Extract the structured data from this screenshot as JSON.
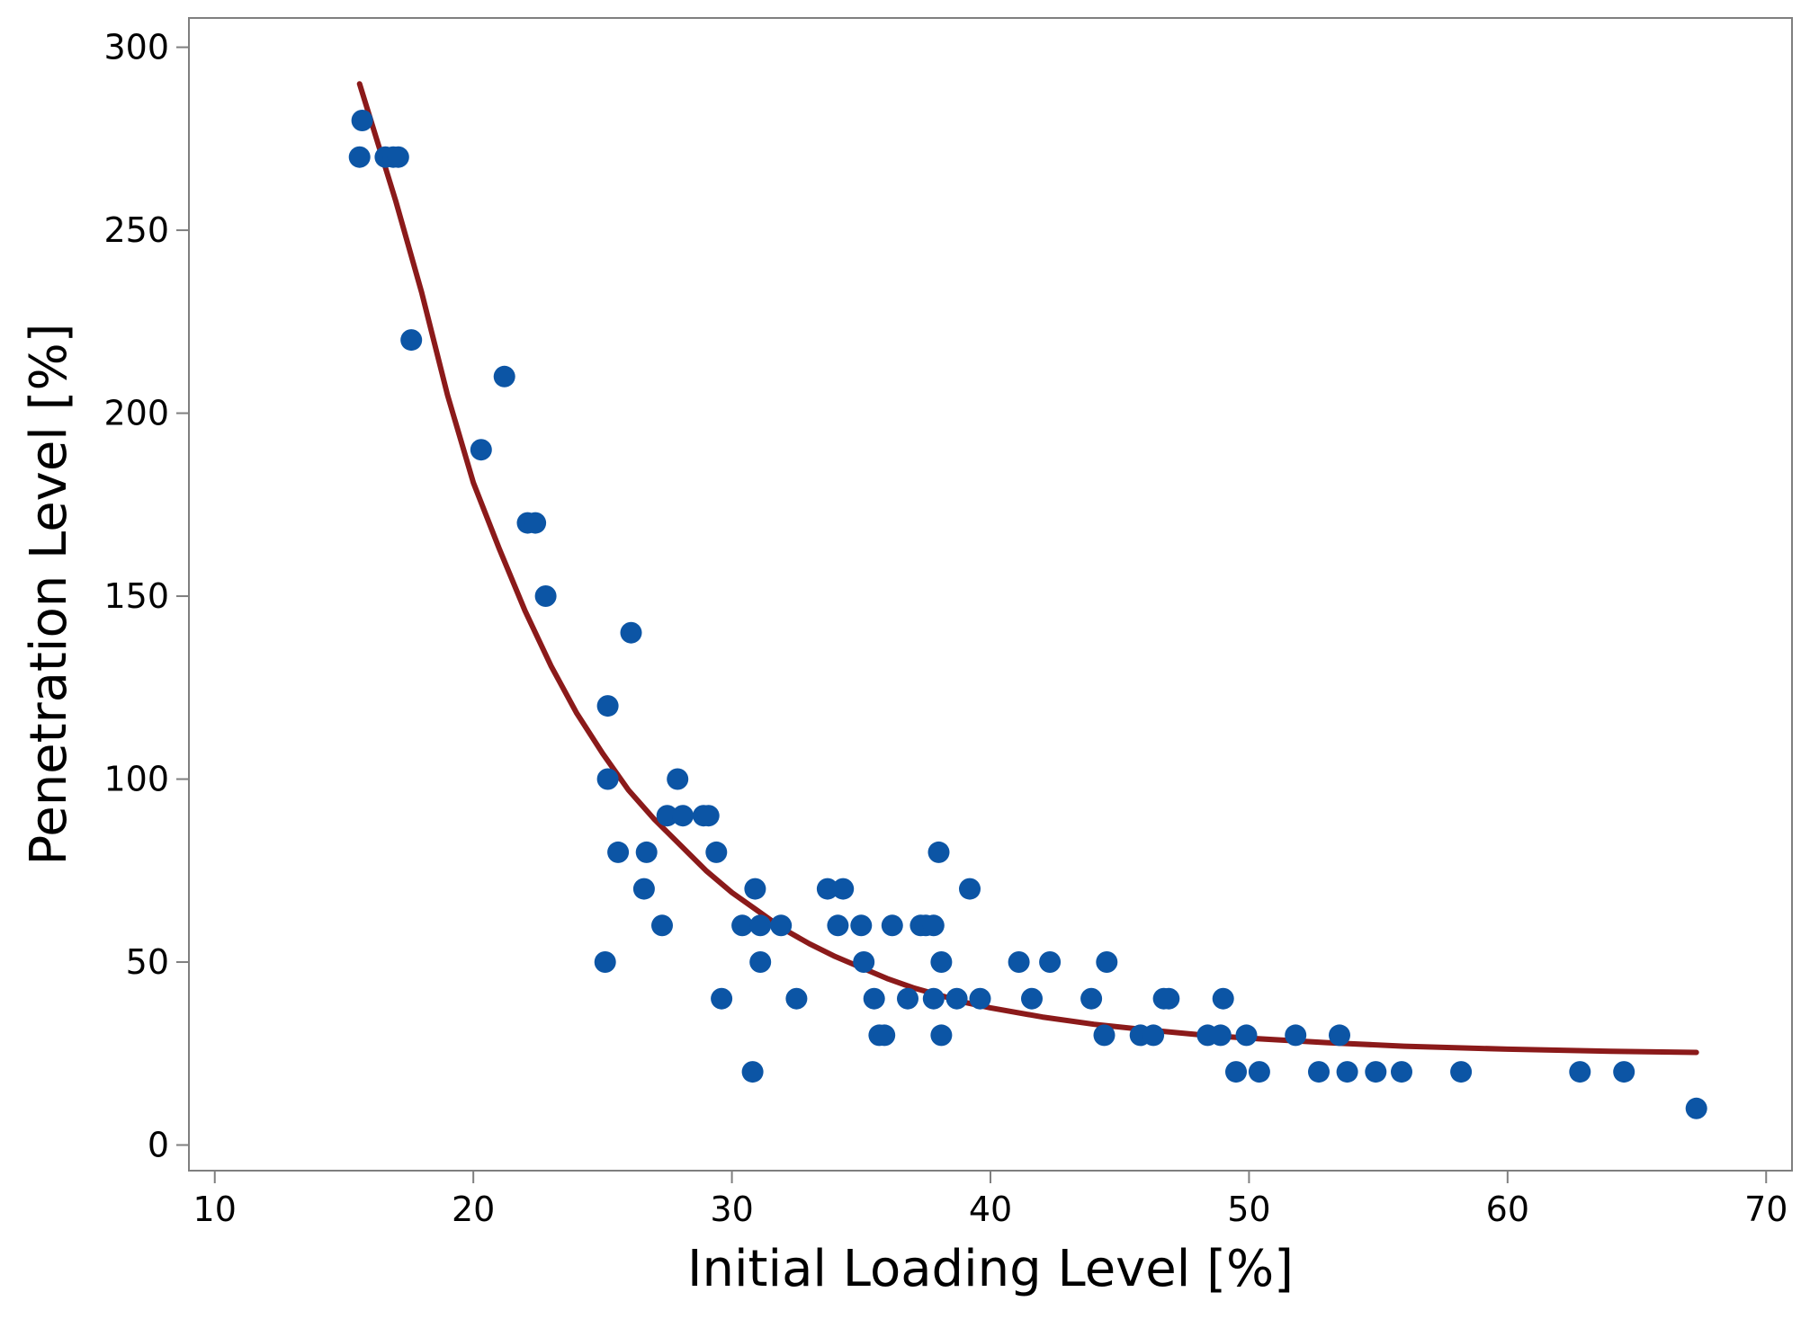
{
  "chart_data": {
    "type": "scatter",
    "title": "",
    "xlabel": "Initial Loading Level [%]",
    "ylabel": "Penetration Level [%]",
    "xlim": [
      9,
      71
    ],
    "ylim": [
      -7,
      308
    ],
    "xticks": [
      10,
      20,
      30,
      40,
      50,
      60,
      70
    ],
    "yticks": [
      0,
      50,
      100,
      150,
      200,
      250,
      300
    ],
    "grid": false,
    "legend": "none",
    "colors": {
      "points": "#0C55A5",
      "fit_line": "#8B1A1A",
      "axes": "#7F7F7F"
    },
    "series": [
      {
        "name": "observations",
        "kind": "scatter",
        "points": [
          [
            15.6,
            270
          ],
          [
            15.7,
            280
          ],
          [
            16.6,
            270
          ],
          [
            16.9,
            270
          ],
          [
            17.1,
            270
          ],
          [
            17.6,
            220
          ],
          [
            20.3,
            190
          ],
          [
            21.2,
            210
          ],
          [
            22.1,
            170
          ],
          [
            22.4,
            170
          ],
          [
            22.8,
            150
          ],
          [
            25.1,
            50
          ],
          [
            25.2,
            120
          ],
          [
            25.2,
            100
          ],
          [
            25.6,
            80
          ],
          [
            26.1,
            140
          ],
          [
            26.6,
            70
          ],
          [
            26.7,
            80
          ],
          [
            27.3,
            60
          ],
          [
            27.5,
            90
          ],
          [
            27.9,
            100
          ],
          [
            28.1,
            90
          ],
          [
            28.9,
            90
          ],
          [
            29.1,
            90
          ],
          [
            29.4,
            80
          ],
          [
            29.6,
            40
          ],
          [
            30.4,
            60
          ],
          [
            30.8,
            20
          ],
          [
            30.9,
            70
          ],
          [
            31.1,
            60
          ],
          [
            31.1,
            50
          ],
          [
            31.9,
            60
          ],
          [
            32.5,
            40
          ],
          [
            33.7,
            70
          ],
          [
            34.1,
            60
          ],
          [
            34.3,
            70
          ],
          [
            35.0,
            60
          ],
          [
            35.1,
            50
          ],
          [
            35.5,
            40
          ],
          [
            35.7,
            30
          ],
          [
            35.9,
            30
          ],
          [
            36.2,
            60
          ],
          [
            36.8,
            40
          ],
          [
            37.3,
            60
          ],
          [
            37.5,
            60
          ],
          [
            37.8,
            40
          ],
          [
            37.8,
            60
          ],
          [
            38.0,
            80
          ],
          [
            38.1,
            50
          ],
          [
            38.1,
            30
          ],
          [
            38.7,
            40
          ],
          [
            39.2,
            70
          ],
          [
            39.6,
            40
          ],
          [
            41.1,
            50
          ],
          [
            41.6,
            40
          ],
          [
            42.3,
            50
          ],
          [
            43.9,
            40
          ],
          [
            44.4,
            30
          ],
          [
            44.5,
            50
          ],
          [
            45.8,
            30
          ],
          [
            46.3,
            30
          ],
          [
            46.7,
            40
          ],
          [
            46.9,
            40
          ],
          [
            48.4,
            30
          ],
          [
            48.9,
            30
          ],
          [
            49.0,
            40
          ],
          [
            49.5,
            20
          ],
          [
            49.9,
            30
          ],
          [
            50.4,
            20
          ],
          [
            51.8,
            30
          ],
          [
            52.7,
            20
          ],
          [
            53.5,
            30
          ],
          [
            53.8,
            20
          ],
          [
            54.9,
            20
          ],
          [
            55.9,
            20
          ],
          [
            58.2,
            20
          ],
          [
            62.8,
            20
          ],
          [
            64.5,
            20
          ],
          [
            67.3,
            10
          ]
        ]
      },
      {
        "name": "fitted curve",
        "kind": "line",
        "points": [
          [
            15.6,
            290
          ],
          [
            17.0,
            258
          ],
          [
            18.0,
            233
          ],
          [
            19.0,
            205
          ],
          [
            20.0,
            181
          ],
          [
            21.0,
            163
          ],
          [
            22.0,
            146
          ],
          [
            23.0,
            131
          ],
          [
            24.0,
            118
          ],
          [
            25.0,
            107
          ],
          [
            26.0,
            97
          ],
          [
            27.0,
            89
          ],
          [
            28.0,
            82
          ],
          [
            29.0,
            75
          ],
          [
            30.0,
            69
          ],
          [
            31.0,
            64
          ],
          [
            32.0,
            59
          ],
          [
            33.0,
            55
          ],
          [
            34.0,
            51.5
          ],
          [
            35.0,
            48.5
          ],
          [
            36.0,
            45.5
          ],
          [
            37.0,
            43
          ],
          [
            38.0,
            41
          ],
          [
            39.0,
            39
          ],
          [
            40.0,
            37.5
          ],
          [
            42.0,
            35
          ],
          [
            44.0,
            33
          ],
          [
            46.0,
            31.5
          ],
          [
            48.0,
            30.2
          ],
          [
            50.0,
            29.2
          ],
          [
            53.0,
            28
          ],
          [
            56.0,
            27
          ],
          [
            60.0,
            26.2
          ],
          [
            64.0,
            25.6
          ],
          [
            67.3,
            25.3
          ]
        ]
      }
    ]
  }
}
